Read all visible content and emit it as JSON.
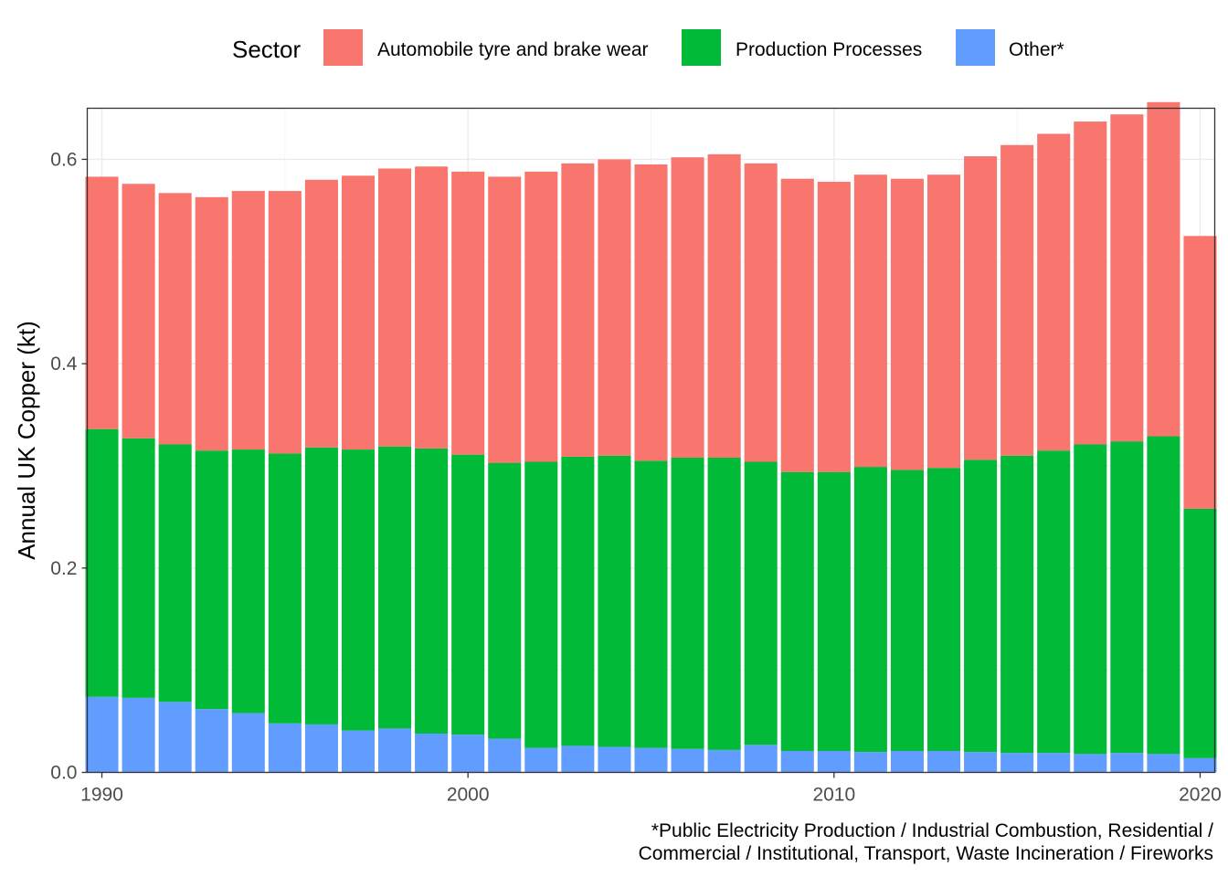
{
  "chart_data": {
    "type": "bar",
    "stacked": true,
    "title": "",
    "xlabel": "",
    "ylabel": "Annual UK Copper (kt)",
    "ylim": [
      0,
      0.65
    ],
    "xlim": [
      1989.6,
      2020.4
    ],
    "x_ticks": [
      1990,
      2000,
      2010,
      2020
    ],
    "y_ticks": [
      0.0,
      0.2,
      0.4,
      0.6
    ],
    "y_tick_labels": [
      "0.0",
      "0.2",
      "0.4",
      "0.6"
    ],
    "grid": true,
    "legend": {
      "title": "Sector",
      "placement": "top",
      "entries": [
        "Automobile tyre and brake wear",
        "Production Processes",
        "Other*"
      ]
    },
    "caption": [
      "*Public Electricity Production / Industrial Combustion, Residential /",
      "Commercial / Institutional, Transport, Waste Incineration / Fireworks"
    ],
    "x": [
      1990,
      1991,
      1992,
      1993,
      1994,
      1995,
      1996,
      1997,
      1998,
      1999,
      2000,
      2001,
      2002,
      2003,
      2004,
      2005,
      2006,
      2007,
      2008,
      2009,
      2010,
      2011,
      2012,
      2013,
      2014,
      2015,
      2016,
      2017,
      2018,
      2019,
      2020
    ],
    "series": [
      {
        "name": "Other*",
        "color": "#619CFF",
        "values": [
          0.074,
          0.073,
          0.069,
          0.062,
          0.058,
          0.048,
          0.047,
          0.041,
          0.043,
          0.038,
          0.037,
          0.033,
          0.024,
          0.026,
          0.025,
          0.024,
          0.023,
          0.022,
          0.027,
          0.021,
          0.021,
          0.02,
          0.021,
          0.021,
          0.02,
          0.019,
          0.019,
          0.018,
          0.019,
          0.018,
          0.014
        ]
      },
      {
        "name": "Production Processes",
        "color": "#00BA38",
        "values": [
          0.262,
          0.254,
          0.252,
          0.253,
          0.258,
          0.264,
          0.271,
          0.275,
          0.276,
          0.279,
          0.274,
          0.27,
          0.28,
          0.283,
          0.285,
          0.281,
          0.285,
          0.286,
          0.277,
          0.273,
          0.273,
          0.279,
          0.275,
          0.277,
          0.286,
          0.291,
          0.296,
          0.303,
          0.305,
          0.311,
          0.244
        ]
      },
      {
        "name": "Automobile tyre and brake wear",
        "color": "#F8766D",
        "values": [
          0.247,
          0.249,
          0.246,
          0.248,
          0.253,
          0.257,
          0.262,
          0.268,
          0.272,
          0.276,
          0.277,
          0.28,
          0.284,
          0.287,
          0.29,
          0.29,
          0.294,
          0.297,
          0.292,
          0.287,
          0.284,
          0.286,
          0.285,
          0.287,
          0.297,
          0.304,
          0.31,
          0.316,
          0.32,
          0.327,
          0.267
        ]
      }
    ]
  }
}
